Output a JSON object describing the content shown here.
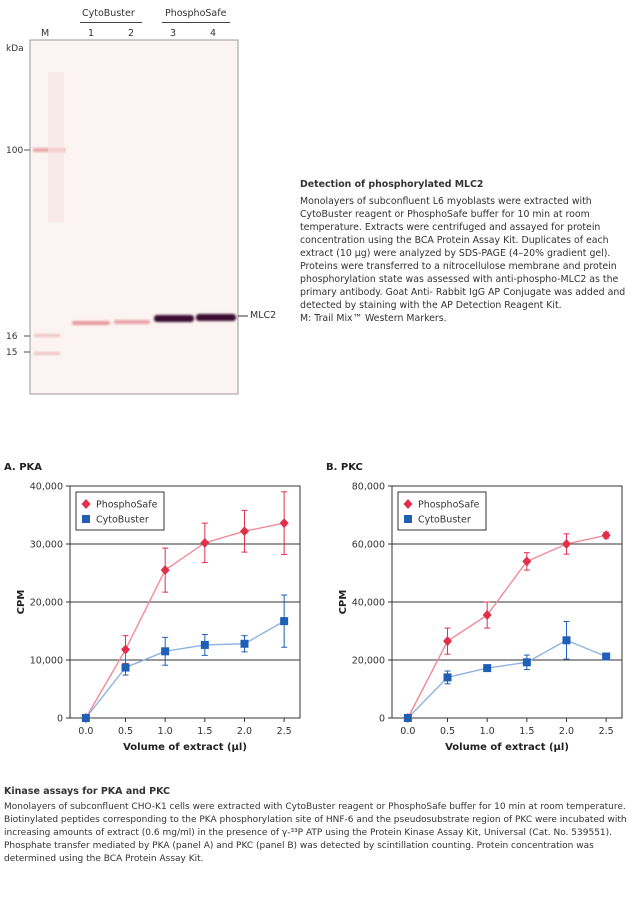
{
  "blot": {
    "kda_label": "kDa",
    "group_labels": [
      "CytoBuster",
      "PhosphoSafe"
    ],
    "lane_labels": [
      "M",
      "1",
      "2",
      "3",
      "4"
    ],
    "markers": [
      "100",
      "16",
      "15"
    ],
    "band_label": "MLC2",
    "caption_title": "Detection of phosphorylated MLC2",
    "caption_text": "Monolayers of subconfluent L6 myoblasts were extracted with CytoBuster reagent or PhosphoSafe buffer for 10 min at room temperature. Extracts were centrifuged and assayed for protein concentration using the BCA Protein Assay Kit. Duplicates of each extract (10 µg) were analyzed by SDS-PAGE (4–20% gradient gel). Proteins were transferred to a nitrocellulose membrane and protein phosphorylation state was assessed with anti-phospho-MLC2 as the primary antibody. Goat Anti- Rabbit IgG AP Conjugate was added and detected by staining with the AP Detection Reagent Kit.",
    "caption_note": "M: Trail Mix™ Western Markers."
  },
  "chart_data": [
    {
      "type": "line",
      "panel": "A. PKA",
      "title": "",
      "xlabel": "Volume of extract (µl)",
      "ylabel": "CPM",
      "x": [
        0.0,
        0.5,
        1.0,
        1.5,
        2.0,
        2.5
      ],
      "x_ticks": [
        "0.0",
        "0.5",
        "1.0",
        "1.5",
        "2.0",
        "2.5"
      ],
      "xlim": [
        -0.2,
        2.7
      ],
      "ylim": [
        0,
        40000
      ],
      "y_ticks": [
        "0",
        "10,000",
        "20,000",
        "30,000",
        "40,000"
      ],
      "y_tick_values": [
        0,
        10000,
        20000,
        30000,
        40000
      ],
      "grid": "horizontal",
      "legend": "top-left",
      "series": [
        {
          "name": "PhosphoSafe",
          "color": "#e0304a",
          "line_color": "#f08a98",
          "marker": "diamond",
          "values": [
            0,
            11800,
            25500,
            30200,
            32200,
            33600
          ],
          "errors": [
            0,
            2400,
            3800,
            3400,
            3600,
            5400
          ]
        },
        {
          "name": "CytoBuster",
          "color": "#1f5fb5",
          "line_color": "#8fb3e0",
          "marker": "square",
          "values": [
            0,
            8700,
            11500,
            12600,
            12800,
            16700
          ],
          "errors": [
            0,
            1300,
            2400,
            1800,
            1400,
            4500
          ]
        }
      ]
    },
    {
      "type": "line",
      "panel": "B. PKC",
      "title": "",
      "xlabel": "Volume of extract (µl)",
      "ylabel": "CPM",
      "x": [
        0.0,
        0.5,
        1.0,
        1.5,
        2.0,
        2.5
      ],
      "x_ticks": [
        "0.0",
        "0.5",
        "1.0",
        "1.5",
        "2.0",
        "2.5"
      ],
      "xlim": [
        -0.2,
        2.7
      ],
      "ylim": [
        0,
        80000
      ],
      "y_ticks": [
        "0",
        "20,000",
        "40,000",
        "60,000",
        "80,000"
      ],
      "y_tick_values": [
        0,
        20000,
        40000,
        60000,
        80000
      ],
      "grid": "horizontal",
      "legend": "top-left",
      "series": [
        {
          "name": "PhosphoSafe",
          "color": "#e0304a",
          "line_color": "#f08a98",
          "marker": "diamond",
          "values": [
            0,
            26500,
            35500,
            54000,
            60000,
            63000
          ],
          "errors": [
            0,
            4500,
            4500,
            3000,
            3500,
            1000
          ]
        },
        {
          "name": "CytoBuster",
          "color": "#1f5fb5",
          "line_color": "#8fb3e0",
          "marker": "square",
          "values": [
            0,
            14000,
            17200,
            19200,
            26800,
            21200
          ],
          "errors": [
            0,
            2200,
            1000,
            2500,
            6500,
            800
          ]
        }
      ]
    }
  ],
  "kinase_caption": {
    "title": "Kinase assays for PKA and PKC",
    "text": "Monolayers of subconfluent CHO-K1 cells were extracted with CytoBuster reagent or PhosphoSafe buffer for 10 min at room temperature. Biotinylated peptides corresponding to the PKA phosphorylation site of HNF-6 and the pseudosubstrate region of PKC were incubated with increasing amounts of extract (0.6 mg/ml) in the presence of γ-³³P ATP using the Protein Kinase Assay Kit, Universal (Cat. No. 539551). Phosphate transfer mediated by PKA (panel A) and PKC (panel B) was detected by scintillation counting. Protein concentration was determined using the BCA Protein Assay Kit."
  }
}
